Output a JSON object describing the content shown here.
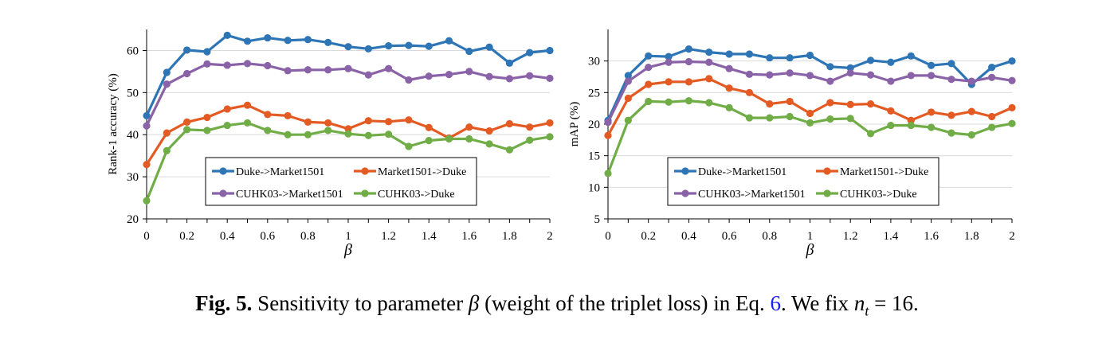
{
  "caption": {
    "label": "Fig. 5.",
    "text_a": " Sensitivity to parameter ",
    "symbol": "β",
    "text_b": " (weight of the triplet loss) in Eq. ",
    "eq_ref": "6",
    "text_c": ". We fix ",
    "var": "n",
    "sub": "t",
    "text_d": " = 16."
  },
  "chart_data": [
    {
      "type": "line",
      "xlabel": "β",
      "ylabel": "Rank-1 accuracy (%)",
      "ylim": [
        20,
        65
      ],
      "yticks": [
        20,
        30,
        40,
        50,
        60
      ],
      "xlim": [
        0,
        2
      ],
      "xticks": [
        "0",
        "0.2",
        "0.4",
        "0.6",
        "0.8",
        "1",
        "1.2",
        "1.4",
        "1.6",
        "1.8",
        "2"
      ],
      "grid": "horizontal",
      "legend": "lower-right",
      "x": [
        0,
        0.1,
        0.2,
        0.3,
        0.4,
        0.5,
        0.6,
        0.7,
        0.8,
        0.9,
        1.0,
        1.1,
        1.2,
        1.3,
        1.4,
        1.5,
        1.6,
        1.7,
        1.8,
        1.9,
        2.0
      ],
      "series": [
        {
          "name": "Duke->Market1501",
          "color": "#2e75b6",
          "values": [
            44.5,
            54.8,
            60.1,
            59.7,
            63.6,
            62.2,
            63.0,
            62.4,
            62.6,
            61.9,
            60.9,
            60.4,
            61.1,
            61.2,
            61.0,
            62.3,
            59.8,
            60.8,
            57.0,
            59.5,
            60.0
          ]
        },
        {
          "name": "Market1501->Duke",
          "color": "#e35b23",
          "values": [
            32.9,
            40.4,
            43.0,
            44.1,
            46.1,
            47.0,
            44.8,
            44.5,
            43.0,
            42.8,
            41.4,
            43.3,
            43.1,
            43.5,
            41.7,
            39.2,
            41.8,
            40.9,
            42.6,
            41.8,
            42.8
          ]
        },
        {
          "name": "CUHK03->Market1501",
          "color": "#8a62a7",
          "values": [
            42.1,
            52.0,
            54.5,
            56.8,
            56.5,
            56.9,
            56.4,
            55.2,
            55.4,
            55.4,
            55.7,
            54.2,
            55.7,
            53.0,
            53.9,
            54.3,
            55.0,
            53.8,
            53.3,
            54.0,
            53.4
          ]
        },
        {
          "name": "CUHK03->Duke",
          "color": "#71ad47",
          "values": [
            24.3,
            36.2,
            41.2,
            41.0,
            42.2,
            42.8,
            41.0,
            40.0,
            40.0,
            41.0,
            40.2,
            39.8,
            40.1,
            37.2,
            38.6,
            39.0,
            39.0,
            37.8,
            36.4,
            38.7,
            39.5
          ]
        }
      ]
    },
    {
      "type": "line",
      "xlabel": "β",
      "ylabel": "mAP (%)",
      "ylim": [
        5,
        35
      ],
      "yticks": [
        5,
        10,
        15,
        20,
        25,
        30
      ],
      "xlim": [
        0,
        2
      ],
      "xticks": [
        "0",
        "0.2",
        "0.4",
        "0.6",
        "0.8",
        "1",
        "1.2",
        "1.4",
        "1.6",
        "1.8",
        "2"
      ],
      "grid": "horizontal",
      "legend": "lower-right",
      "x": [
        0,
        0.1,
        0.2,
        0.3,
        0.4,
        0.5,
        0.6,
        0.7,
        0.8,
        0.9,
        1.0,
        1.1,
        1.2,
        1.3,
        1.4,
        1.5,
        1.6,
        1.7,
        1.8,
        1.9,
        2.0
      ],
      "series": [
        {
          "name": "Duke->Market1501",
          "color": "#2e75b6",
          "values": [
            20.6,
            27.7,
            30.8,
            30.7,
            31.9,
            31.4,
            31.1,
            31.1,
            30.5,
            30.5,
            30.9,
            29.1,
            28.9,
            30.1,
            29.8,
            30.8,
            29.3,
            29.6,
            26.3,
            29.0,
            30.0
          ]
        },
        {
          "name": "Market1501->Duke",
          "color": "#e35b23",
          "values": [
            18.2,
            24.1,
            26.3,
            26.7,
            26.7,
            27.2,
            25.7,
            25.0,
            23.2,
            23.6,
            21.7,
            23.4,
            23.1,
            23.2,
            22.1,
            20.6,
            21.9,
            21.4,
            22.0,
            21.2,
            22.6
          ]
        },
        {
          "name": "CUHK03->Market1501",
          "color": "#8a62a7",
          "values": [
            20.3,
            26.8,
            29.0,
            29.8,
            29.9,
            29.8,
            28.8,
            27.9,
            27.8,
            28.1,
            27.7,
            26.8,
            28.1,
            27.8,
            26.8,
            27.7,
            27.7,
            27.1,
            26.8,
            27.4,
            26.9
          ]
        },
        {
          "name": "CUHK03->Duke",
          "color": "#71ad47",
          "values": [
            12.2,
            20.6,
            23.6,
            23.5,
            23.7,
            23.4,
            22.6,
            21.0,
            21.0,
            21.2,
            20.2,
            20.8,
            20.9,
            18.5,
            19.8,
            19.8,
            19.5,
            18.6,
            18.3,
            19.5,
            20.1
          ]
        }
      ]
    }
  ]
}
